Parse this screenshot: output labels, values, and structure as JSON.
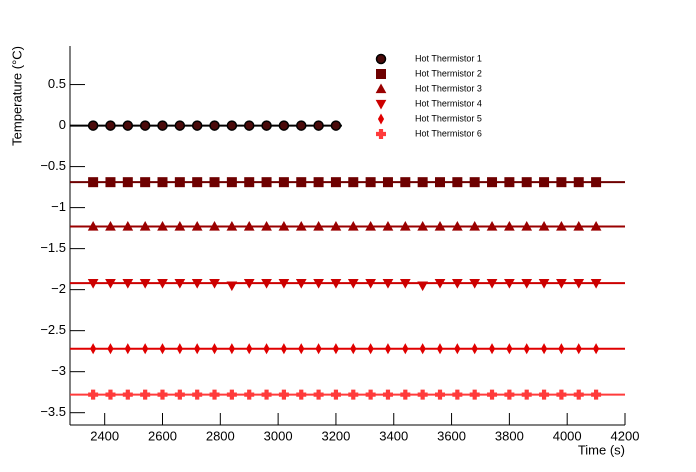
{
  "chart_data": {
    "type": "scatter",
    "x_label": "Time (s)",
    "y_label": "Temperature (°C)",
    "x": [
      2360,
      2420,
      2480,
      2540,
      2600,
      2660,
      2720,
      2780,
      2840,
      2900,
      2960,
      3020,
      3080,
      3140,
      3200,
      3260,
      3320,
      3380,
      3440,
      3500,
      3560,
      3620,
      3680,
      3740,
      3800,
      3860,
      3920,
      3980,
      4040,
      4100
    ],
    "series": [
      {
        "name": "Hot Thermistor 1",
        "color": "#000000",
        "fill": "#4a0a0a",
        "marker": "circle",
        "values": [
          0,
          0,
          0,
          0,
          0,
          0,
          0,
          0,
          0,
          0,
          0,
          0,
          0,
          0,
          0,
          null,
          null,
          null,
          null,
          null,
          null,
          null,
          null,
          null,
          null,
          null,
          null,
          null,
          null,
          null
        ]
      },
      {
        "name": "Hot Thermistor 2",
        "color": "#6e0000",
        "marker": "square",
        "values": [
          -0.69,
          -0.69,
          -0.69,
          -0.69,
          -0.69,
          -0.69,
          -0.69,
          -0.69,
          -0.69,
          -0.69,
          -0.69,
          -0.69,
          -0.69,
          -0.69,
          -0.69,
          -0.69,
          -0.69,
          -0.69,
          -0.69,
          -0.69,
          -0.69,
          -0.69,
          -0.69,
          -0.69,
          -0.69,
          -0.69,
          -0.69,
          -0.69,
          -0.69,
          -0.69
        ]
      },
      {
        "name": "Hot Thermistor 3",
        "color": "#9a0000",
        "marker": "triangle-up",
        "values": [
          -1.23,
          -1.23,
          -1.23,
          -1.23,
          -1.23,
          -1.23,
          -1.23,
          -1.23,
          -1.23,
          -1.23,
          -1.23,
          -1.23,
          -1.23,
          -1.23,
          -1.23,
          -1.23,
          -1.23,
          -1.23,
          -1.23,
          -1.23,
          -1.23,
          -1.23,
          -1.23,
          -1.23,
          -1.23,
          -1.23,
          -1.23,
          -1.23,
          -1.23,
          -1.23
        ]
      },
      {
        "name": "Hot Thermistor 4",
        "color": "#cc0000",
        "marker": "triangle-down",
        "values": [
          -1.92,
          -1.92,
          -1.92,
          -1.92,
          -1.92,
          -1.92,
          -1.92,
          -1.92,
          -1.95,
          -1.92,
          -1.92,
          -1.92,
          -1.92,
          -1.92,
          -1.92,
          -1.92,
          -1.92,
          -1.92,
          -1.92,
          -1.95,
          -1.92,
          -1.92,
          -1.92,
          -1.92,
          -1.92,
          -1.92,
          -1.92,
          -1.92,
          -1.92,
          -1.92
        ]
      },
      {
        "name": "Hot Thermistor 5",
        "color": "#e00000",
        "marker": "diamond",
        "values": [
          -2.72,
          -2.72,
          -2.72,
          -2.72,
          -2.72,
          -2.72,
          -2.72,
          -2.72,
          -2.72,
          -2.72,
          -2.72,
          -2.72,
          -2.72,
          -2.72,
          -2.72,
          -2.72,
          -2.72,
          -2.72,
          -2.72,
          -2.72,
          -2.72,
          -2.72,
          -2.72,
          -2.72,
          -2.72,
          -2.72,
          -2.72,
          -2.72,
          -2.72,
          -2.72
        ]
      },
      {
        "name": "Hot Thermistor 6",
        "color": "#ff3b3b",
        "marker": "cross",
        "values": [
          -3.28,
          -3.28,
          -3.28,
          -3.28,
          -3.28,
          -3.28,
          -3.28,
          -3.28,
          -3.28,
          -3.28,
          -3.28,
          -3.28,
          -3.28,
          -3.28,
          -3.28,
          -3.28,
          -3.28,
          -3.28,
          -3.28,
          -3.28,
          -3.28,
          -3.28,
          -3.28,
          -3.28,
          -3.28,
          -3.28,
          -3.28,
          -3.28,
          -3.28,
          -3.28
        ]
      }
    ],
    "xlim": [
      2280,
      4200
    ],
    "ylim": [
      -3.65,
      0.97
    ],
    "xticks": [
      2400,
      2600,
      2800,
      3000,
      3200,
      3400,
      3600,
      3800,
      4000,
      4200
    ],
    "yticks": [
      {
        "value": -3.5,
        "label": "−3.5"
      },
      {
        "value": -3,
        "label": "−3"
      },
      {
        "value": -2.5,
        "label": "−2.5"
      },
      {
        "value": -2,
        "label": "−2"
      },
      {
        "value": -1.5,
        "label": "−1.5"
      },
      {
        "value": -1,
        "label": "−1"
      },
      {
        "value": -0.5,
        "label": "−0.5"
      },
      0,
      0.5
    ],
    "legend": "top-right"
  }
}
